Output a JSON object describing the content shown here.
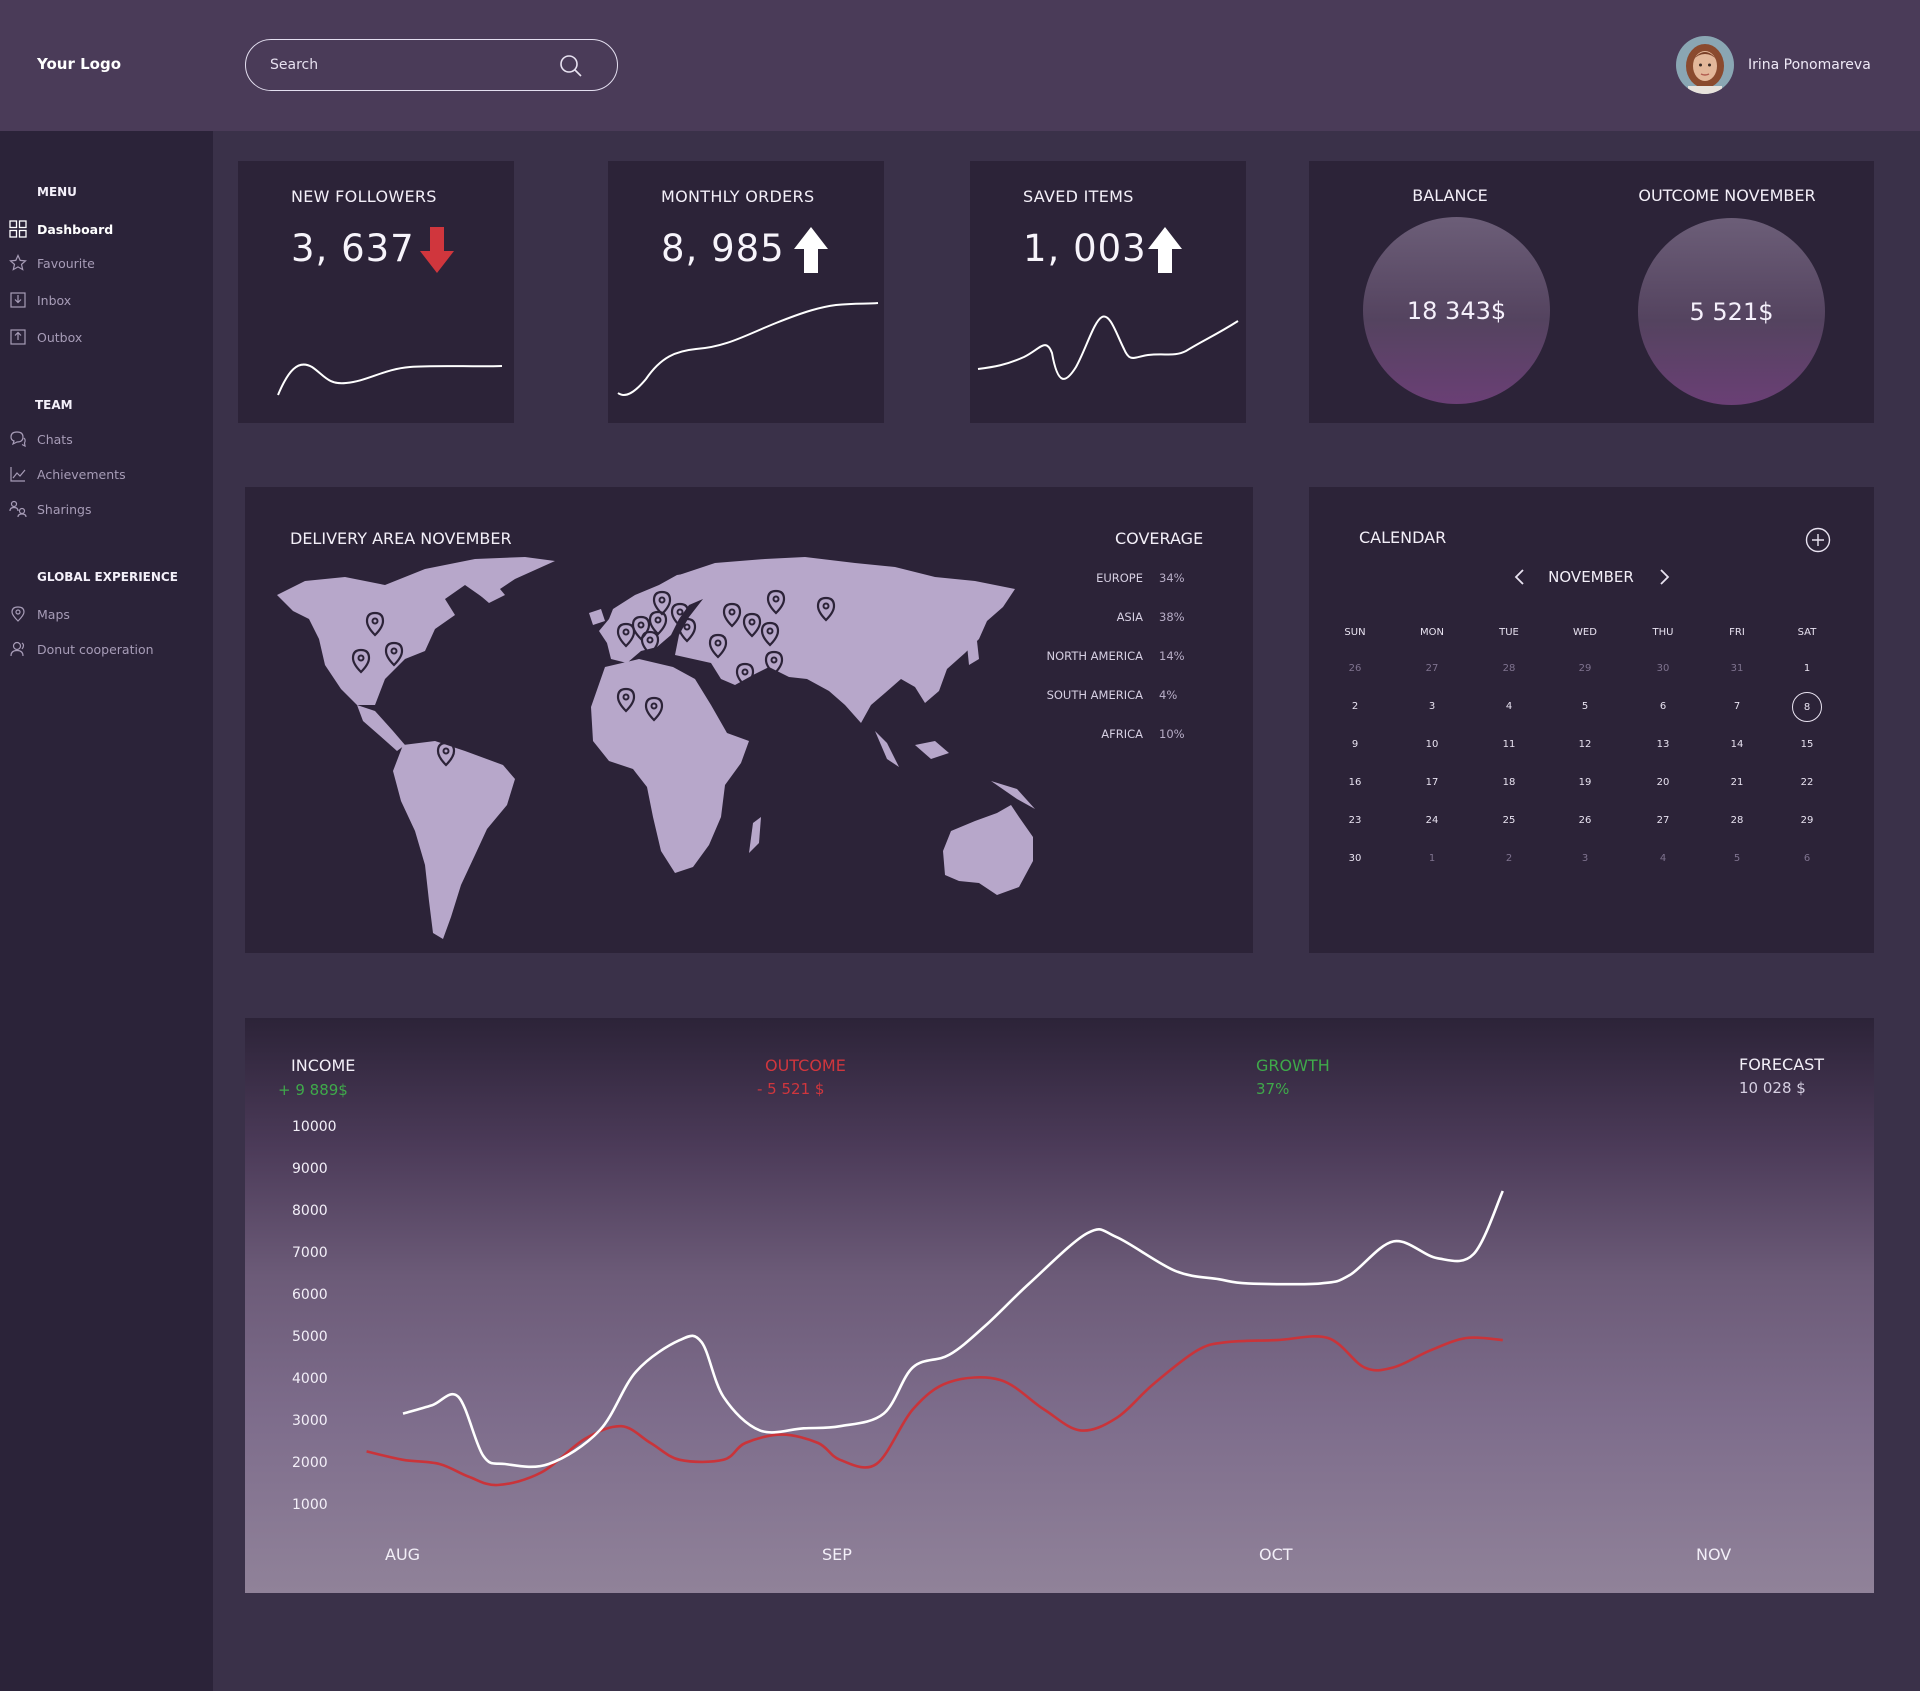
{
  "header": {
    "logo": "Your Logo",
    "search_placeholder": "Search",
    "user_name": "Irina Ponomareva"
  },
  "sidebar": {
    "sections": [
      {
        "title": "MENU",
        "items": [
          {
            "label": "Dashboard",
            "icon": "grid-icon",
            "active": true
          },
          {
            "label": "Favourite",
            "icon": "star-icon"
          },
          {
            "label": "Inbox",
            "icon": "inbox-icon"
          },
          {
            "label": "Outbox",
            "icon": "outbox-icon"
          }
        ]
      },
      {
        "title": "TEAM",
        "items": [
          {
            "label": "Chats",
            "icon": "chat-icon"
          },
          {
            "label": "Achievements",
            "icon": "chart-icon"
          },
          {
            "label": "Sharings",
            "icon": "sharing-icon"
          }
        ]
      },
      {
        "title": "GLOBAL EXPERIENCE",
        "items": [
          {
            "label": "Maps",
            "icon": "map-pin-icon"
          },
          {
            "label": "Donut cooperation",
            "icon": "users-icon"
          }
        ]
      }
    ]
  },
  "stats": [
    {
      "title": "NEW FOLLOWERS",
      "value": "3, 637",
      "trend": "down",
      "trend_color": "#d0363d"
    },
    {
      "title": "MONTHLY ORDERS",
      "value": "8, 985",
      "trend": "up",
      "trend_color": "#ffffff"
    },
    {
      "title": "SAVED ITEMS",
      "value": "1, 003",
      "trend": "up",
      "trend_color": "#ffffff"
    }
  ],
  "balance": {
    "balance_title": "BALANCE",
    "balance_value": "18 343$",
    "outcome_title": "OUTCOME NOVEMBER",
    "outcome_value": "5 521$"
  },
  "delivery": {
    "title": "DELIVERY AREA NOVEMBER",
    "coverage_title": "COVERAGE",
    "coverage": [
      {
        "region": "EUROPE",
        "percent": "34%"
      },
      {
        "region": "ASIA",
        "percent": "38%"
      },
      {
        "region": "NORTH AMERICA",
        "percent": "14%"
      },
      {
        "region": "SOUTH AMERICA",
        "percent": "4%"
      },
      {
        "region": "AFRICA",
        "percent": "10%"
      }
    ]
  },
  "calendar": {
    "title": "CALENDAR",
    "month": "NOVEMBER",
    "weekdays": [
      "SUN",
      "MON",
      "TUE",
      "WED",
      "THU",
      "FRI",
      "SAT"
    ],
    "weeks": [
      [
        "26",
        "27",
        "28",
        "29",
        "30",
        "31",
        "1"
      ],
      [
        "2",
        "3",
        "4",
        "5",
        "6",
        "7",
        "8"
      ],
      [
        "9",
        "10",
        "11",
        "12",
        "13",
        "14",
        "15"
      ],
      [
        "16",
        "17",
        "18",
        "19",
        "20",
        "21",
        "22"
      ],
      [
        "23",
        "24",
        "25",
        "26",
        "27",
        "28",
        "29"
      ],
      [
        "30",
        "1",
        "2",
        "3",
        "4",
        "5",
        "6"
      ]
    ],
    "today": "8"
  },
  "income": {
    "income_label": "INCOME",
    "income_value": "+ 9 889$",
    "outcome_label": "OUTCOME",
    "outcome_value": "- 5 521 $",
    "growth_label": "GROWTH",
    "growth_value": "37%",
    "forecast_label": "FORECAST",
    "forecast_value": "10 028 $"
  },
  "colors": {
    "positive": "#3fa94a",
    "negative": "#d0363d",
    "line_income": "#ffffff",
    "line_outcome": "#c9343a"
  },
  "chart_data": {
    "type": "line",
    "x": [
      "AUG",
      "SEP",
      "OCT",
      "NOV"
    ],
    "ylim": [
      1000,
      10000
    ],
    "yticks": [
      10000,
      9000,
      8000,
      7000,
      6000,
      5000,
      4000,
      3000,
      2000,
      1000
    ],
    "series": [
      {
        "name": "INCOME",
        "color": "#ffffff",
        "points": [
          [
            0,
            3200
          ],
          [
            0.2,
            3400
          ],
          [
            0.38,
            3600
          ],
          [
            0.55,
            2200
          ],
          [
            0.7,
            2000
          ],
          [
            1.0,
            2000
          ],
          [
            1.35,
            2800
          ],
          [
            1.6,
            4200
          ],
          [
            1.9,
            4950
          ],
          [
            2.05,
            4900
          ],
          [
            2.2,
            3600
          ],
          [
            2.45,
            2800
          ],
          [
            2.75,
            2850
          ],
          [
            3.0,
            2900
          ],
          [
            3.3,
            3200
          ],
          [
            3.5,
            4300
          ],
          [
            3.75,
            4600
          ],
          [
            4.0,
            5300
          ],
          [
            4.3,
            6300
          ],
          [
            4.7,
            7500
          ],
          [
            4.9,
            7400
          ],
          [
            5.3,
            6600
          ],
          [
            5.6,
            6400
          ],
          [
            5.8,
            6300
          ],
          [
            6.3,
            6300
          ],
          [
            6.5,
            6500
          ],
          [
            6.8,
            7300
          ],
          [
            7.1,
            6900
          ],
          [
            7.35,
            7000
          ],
          [
            7.55,
            8500
          ]
        ]
      },
      {
        "name": "OUTCOME",
        "color": "#c9343a",
        "points": [
          [
            -0.25,
            2300
          ],
          [
            0,
            2100
          ],
          [
            0.25,
            2000
          ],
          [
            0.45,
            1700
          ],
          [
            0.65,
            1500
          ],
          [
            0.95,
            1800
          ],
          [
            1.25,
            2600
          ],
          [
            1.5,
            2900
          ],
          [
            1.7,
            2500
          ],
          [
            1.9,
            2100
          ],
          [
            2.2,
            2100
          ],
          [
            2.35,
            2500
          ],
          [
            2.6,
            2700
          ],
          [
            2.85,
            2500
          ],
          [
            3.0,
            2100
          ],
          [
            3.25,
            2000
          ],
          [
            3.5,
            3300
          ],
          [
            3.75,
            3950
          ],
          [
            4.1,
            4000
          ],
          [
            4.4,
            3300
          ],
          [
            4.65,
            2800
          ],
          [
            4.9,
            3100
          ],
          [
            5.15,
            3900
          ],
          [
            5.45,
            4700
          ],
          [
            5.65,
            4900
          ],
          [
            6.0,
            4950
          ],
          [
            6.35,
            5000
          ],
          [
            6.6,
            4300
          ],
          [
            6.8,
            4300
          ],
          [
            7.05,
            4700
          ],
          [
            7.3,
            5000
          ],
          [
            7.55,
            4950
          ]
        ]
      }
    ]
  }
}
